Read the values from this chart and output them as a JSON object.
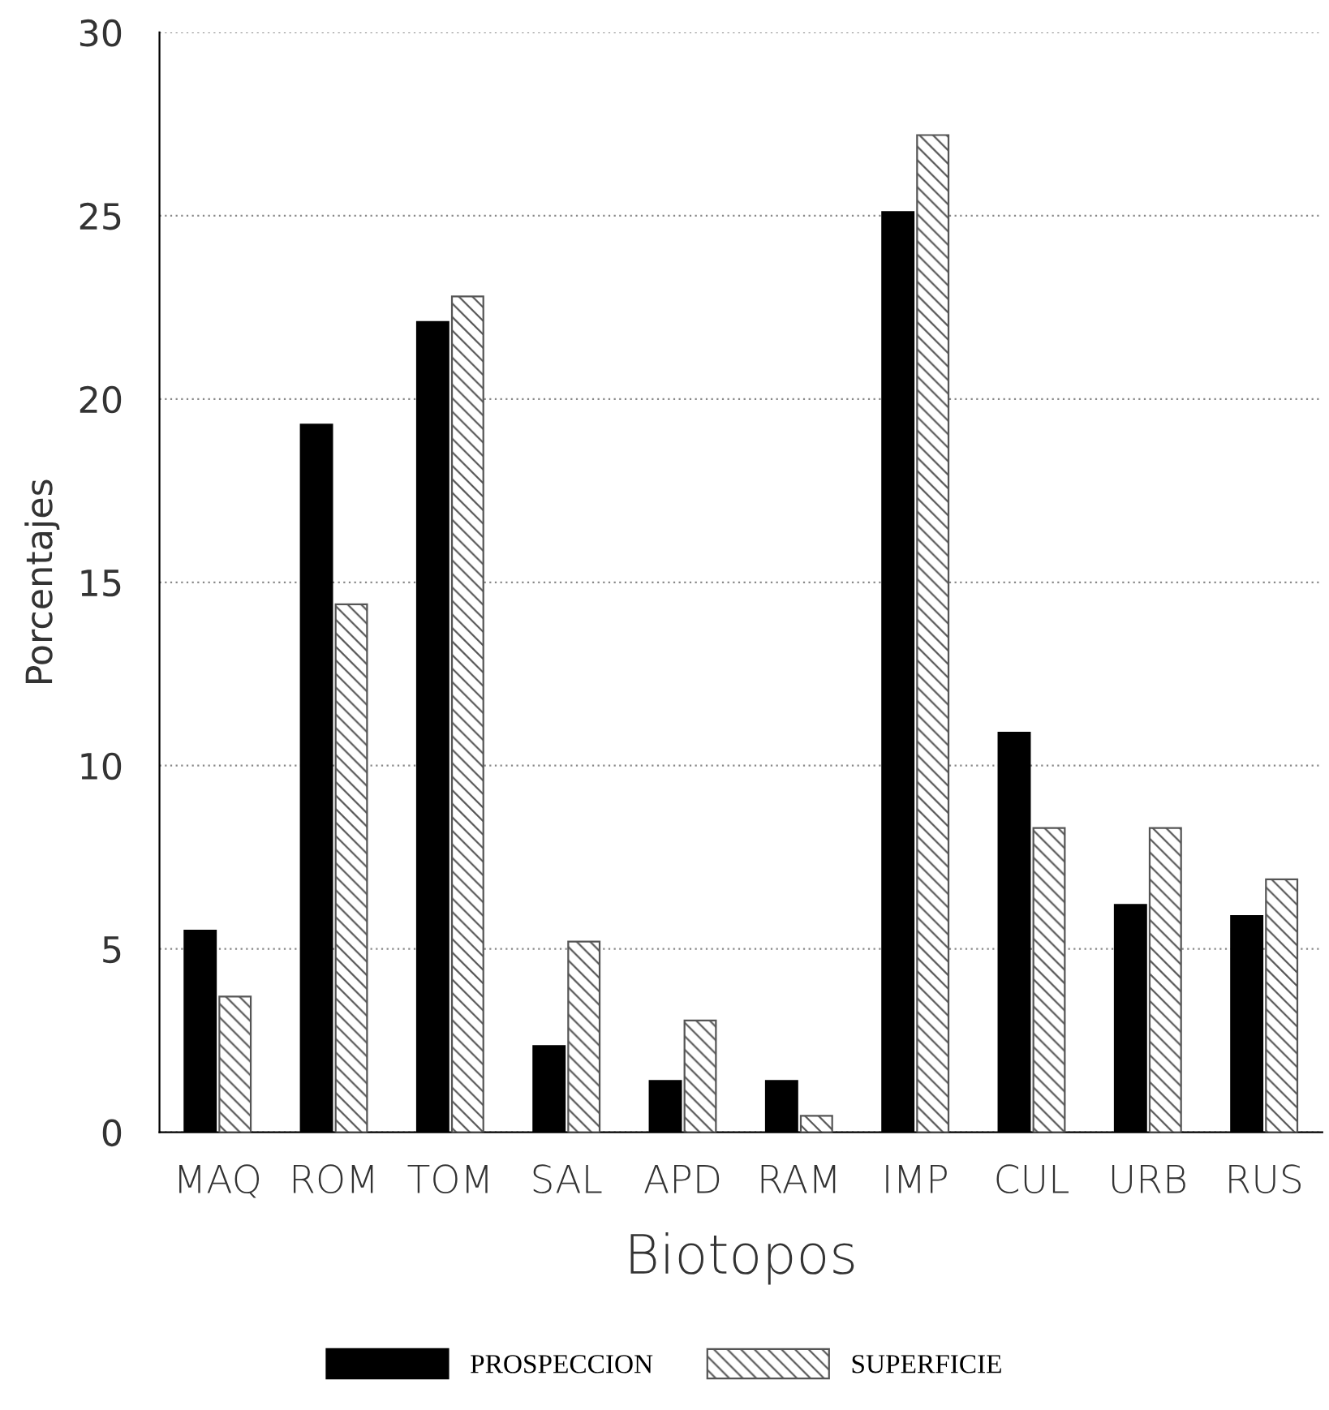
{
  "chart_data": {
    "type": "bar",
    "xlabel": "Biotopos",
    "ylabel": "Porcentajes",
    "categories": [
      "MAQ",
      "ROM",
      "TOM",
      "SAL",
      "APD",
      "RAM",
      "IMP",
      "CUL",
      "URB",
      "RUS"
    ],
    "series": [
      {
        "name": "PROSPECCION",
        "color": "#000000",
        "values": [
          5.5,
          19.3,
          22.1,
          2.35,
          1.4,
          1.4,
          25.1,
          10.9,
          6.2,
          5.9
        ]
      },
      {
        "name": "SUPERFICIE",
        "color": "#555555",
        "values": [
          3.7,
          14.4,
          22.8,
          5.2,
          3.05,
          0.45,
          27.2,
          8.3,
          8.3,
          6.9
        ]
      }
    ],
    "ylim": [
      0,
      30
    ],
    "yticks": [
      0,
      5,
      10,
      15,
      20,
      25,
      30
    ],
    "grid": "y",
    "legend": "bottom"
  }
}
